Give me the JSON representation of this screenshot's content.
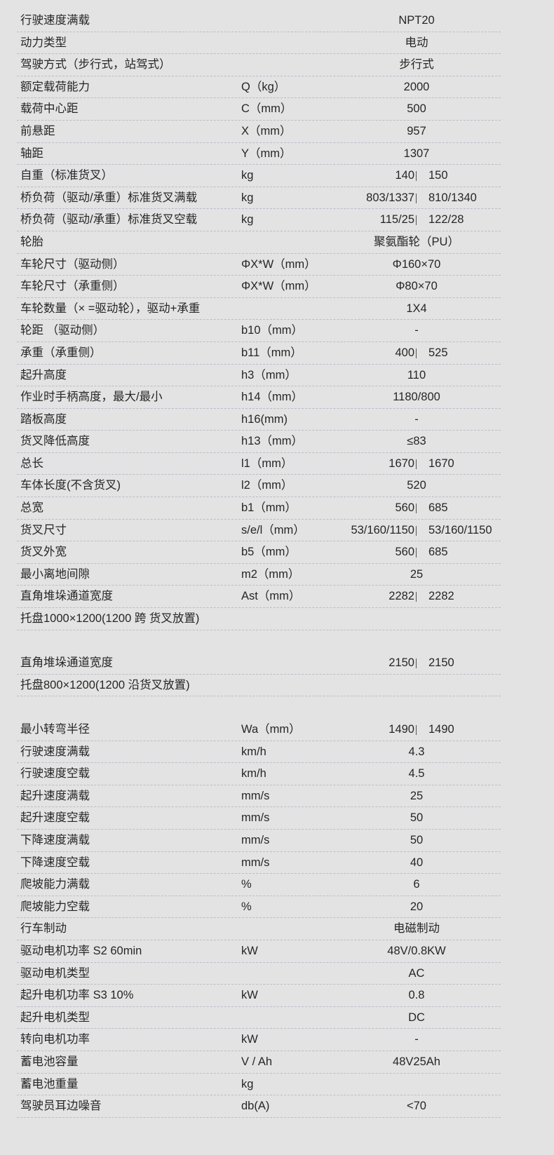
{
  "rows": [
    {
      "label": "行驶速度满载",
      "unit": "",
      "value": "NPT20"
    },
    {
      "label": "动力类型",
      "unit": "",
      "value": "电动"
    },
    {
      "label": "驾驶方式（步行式，站驾式）",
      "unit": "",
      "value": "步行式"
    },
    {
      "label": "额定载荷能力",
      "unit": "Q（kg）",
      "value": "2000"
    },
    {
      "label": "载荷中心距",
      "unit": "C（mm）",
      "value": "500"
    },
    {
      "label": "前悬距",
      "unit": "X（mm）",
      "value": "957"
    },
    {
      "label": "轴距",
      "unit": "Y（mm）",
      "value": "1307"
    },
    {
      "label": "自重（标准货叉）",
      "unit": "kg",
      "left": "140",
      "right": "150"
    },
    {
      "label": "桥负荷（驱动/承重）标准货叉满载",
      "unit": "kg",
      "left": "803/1337",
      "right": "810/1340"
    },
    {
      "label": "桥负荷（驱动/承重）标准货叉空载",
      "unit": "kg",
      "left": "115/25",
      "right": "122/28"
    },
    {
      "label": "轮胎",
      "unit": "",
      "value": "聚氨酯轮（PU）"
    },
    {
      "label": "车轮尺寸（驱动侧）",
      "unit": "ΦX*W（mm）",
      "value": "Φ160×70"
    },
    {
      "label": "车轮尺寸（承重侧）",
      "unit": "ΦX*W（mm）",
      "value": "Φ80×70"
    },
    {
      "label": "车轮数量（× =驱动轮），驱动+承重",
      "unit": "",
      "value": "1X4"
    },
    {
      "label": "轮距 （驱动侧）",
      "unit": "b10（mm）",
      "value": "-"
    },
    {
      "label": "承重（承重侧）",
      "unit": "b11（mm）",
      "left": "400",
      "right": "525"
    },
    {
      "label": "起升高度",
      "unit": "h3（mm）",
      "value": "110"
    },
    {
      "label": "作业时手柄高度，最大/最小",
      "unit": "h14（mm）",
      "value": "1180/800"
    },
    {
      "label": "踏板高度",
      "unit": "h16(mm)",
      "value": "-"
    },
    {
      "label": "货叉降低高度",
      "unit": "h13（mm）",
      "value": "≤83"
    },
    {
      "label": "总长",
      "unit": "l1（mm）",
      "left": "1670",
      "right": "1670"
    },
    {
      "label": "车体长度(不含货叉)",
      "unit": "l2（mm）",
      "value": "520"
    },
    {
      "label": "总宽",
      "unit": "b1（mm）",
      "left": "560",
      "right": "685"
    },
    {
      "label": "货叉尺寸",
      "unit": "s/e/l（mm）",
      "left": "53/160/1150",
      "right": "53/160/1150"
    },
    {
      "label": "货叉外宽",
      "unit": "b5（mm）",
      "left": "560",
      "right": "685"
    },
    {
      "label": "最小离地间隙",
      "unit": "m2（mm）",
      "value": "25"
    },
    {
      "label": "直角堆垛通道宽度",
      "unit": "Ast（mm）",
      "left": "2282",
      "right": "2282"
    },
    {
      "label": "托盘1000×1200(1200 跨 货叉放置)",
      "unit": "",
      "value": ""
    },
    {
      "blank": true
    },
    {
      "label": "直角堆垛通道宽度",
      "unit": "",
      "left": "2150",
      "right": "2150"
    },
    {
      "label": "托盘800×1200(1200 沿货叉放置)",
      "unit": "",
      "value": ""
    },
    {
      "blank": true
    },
    {
      "label": "最小转弯半径",
      "unit": "Wa（mm）",
      "left": "1490",
      "right": "1490"
    },
    {
      "label": "行驶速度满载",
      "unit": "km/h",
      "value": "4.3"
    },
    {
      "label": "行驶速度空载",
      "unit": "km/h",
      "value": "4.5"
    },
    {
      "label": "起升速度满载",
      "unit": "mm/s",
      "value": "25"
    },
    {
      "label": "起升速度空载",
      "unit": "mm/s",
      "value": "50"
    },
    {
      "label": "下降速度满载",
      "unit": "mm/s",
      "value": "50"
    },
    {
      "label": "下降速度空载",
      "unit": "mm/s",
      "value": "40"
    },
    {
      "label": "爬坡能力满载",
      "unit": "%",
      "value": "6"
    },
    {
      "label": "爬坡能力空载",
      "unit": "%",
      "value": "20"
    },
    {
      "label": "行车制动",
      "unit": "",
      "value": "电磁制动"
    },
    {
      "label": "驱动电机功率  S2 60min",
      "unit": "kW",
      "value": "48V/0.8KW"
    },
    {
      "label": "驱动电机类型",
      "unit": "",
      "value": "AC"
    },
    {
      "label": "起升电机功率 S3 10%",
      "unit": "kW",
      "value": "0.8"
    },
    {
      "label": "起升电机类型",
      "unit": "",
      "value": "DC"
    },
    {
      "label": "转向电机功率",
      "unit": "kW",
      "value": "-"
    },
    {
      "label": "蓄电池容量",
      "unit": "V / Ah",
      "value": "48V25Ah"
    },
    {
      "label": "蓄电池重量",
      "unit": "kg",
      "value": ""
    },
    {
      "label": "驾驶员耳边噪音",
      "unit": "db(A)",
      "value": "<70"
    }
  ]
}
